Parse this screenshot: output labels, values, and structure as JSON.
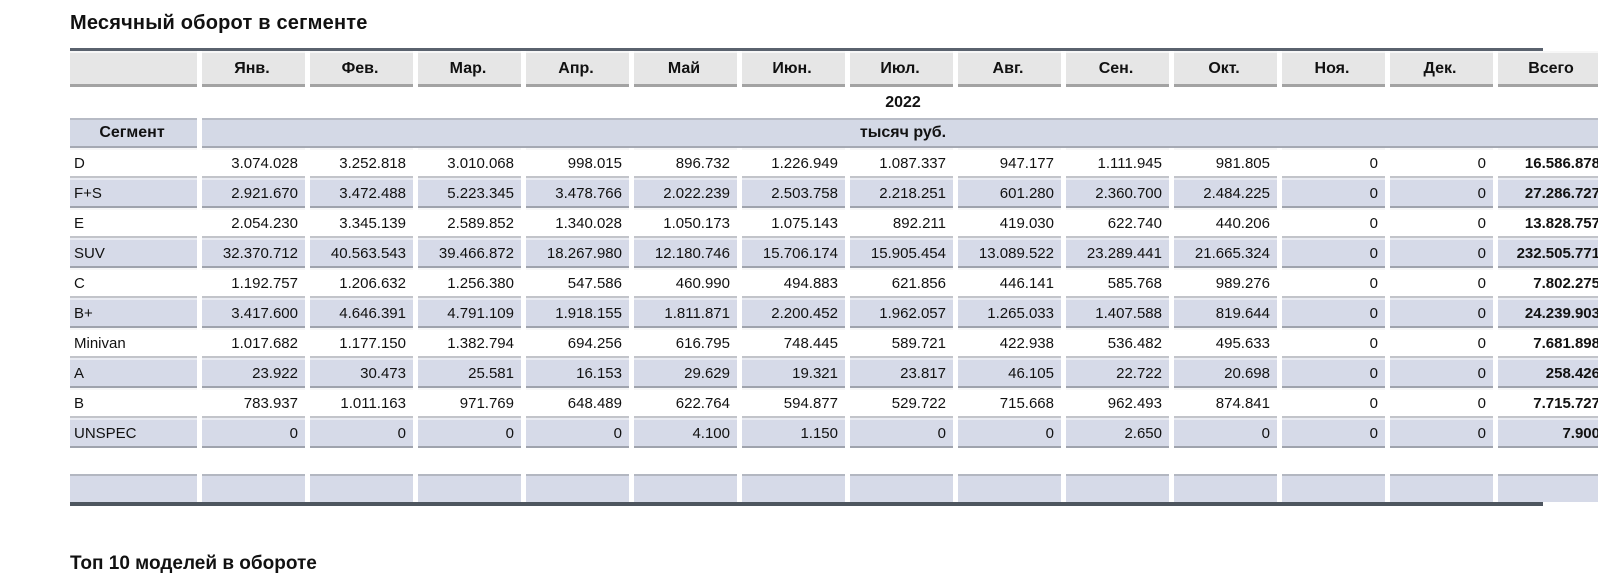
{
  "title": "Месячный оборот в сегменте",
  "year": "2022",
  "table": {
    "segment_header": "Сегмент",
    "units_header": "тысяч руб.",
    "months": [
      "Янв.",
      "Фев.",
      "Мар.",
      "Апр.",
      "Май",
      "Июн.",
      "Июл.",
      "Авг.",
      "Сен.",
      "Окт.",
      "Ноя.",
      "Дек."
    ],
    "total_header": "Всего",
    "rows": [
      {
        "segment": "D",
        "values": [
          "3.074.028",
          "3.252.818",
          "3.010.068",
          "998.015",
          "896.732",
          "1.226.949",
          "1.087.337",
          "947.177",
          "1.111.945",
          "981.805",
          "0",
          "0"
        ],
        "total": "16.586.878"
      },
      {
        "segment": "F+S",
        "values": [
          "2.921.670",
          "3.472.488",
          "5.223.345",
          "3.478.766",
          "2.022.239",
          "2.503.758",
          "2.218.251",
          "601.280",
          "2.360.700",
          "2.484.225",
          "0",
          "0"
        ],
        "total": "27.286.727"
      },
      {
        "segment": "E",
        "values": [
          "2.054.230",
          "3.345.139",
          "2.589.852",
          "1.340.028",
          "1.050.173",
          "1.075.143",
          "892.211",
          "419.030",
          "622.740",
          "440.206",
          "0",
          "0"
        ],
        "total": "13.828.757"
      },
      {
        "segment": "SUV",
        "values": [
          "32.370.712",
          "40.563.543",
          "39.466.872",
          "18.267.980",
          "12.180.746",
          "15.706.174",
          "15.905.454",
          "13.089.522",
          "23.289.441",
          "21.665.324",
          "0",
          "0"
        ],
        "total": "232.505.771"
      },
      {
        "segment": "C",
        "values": [
          "1.192.757",
          "1.206.632",
          "1.256.380",
          "547.586",
          "460.990",
          "494.883",
          "621.856",
          "446.141",
          "585.768",
          "989.276",
          "0",
          "0"
        ],
        "total": "7.802.275"
      },
      {
        "segment": "B+",
        "values": [
          "3.417.600",
          "4.646.391",
          "4.791.109",
          "1.918.155",
          "1.811.871",
          "2.200.452",
          "1.962.057",
          "1.265.033",
          "1.407.588",
          "819.644",
          "0",
          "0"
        ],
        "total": "24.239.903"
      },
      {
        "segment": "Minivan",
        "values": [
          "1.017.682",
          "1.177.150",
          "1.382.794",
          "694.256",
          "616.795",
          "748.445",
          "589.721",
          "422.938",
          "536.482",
          "495.633",
          "0",
          "0"
        ],
        "total": "7.681.898"
      },
      {
        "segment": "A",
        "values": [
          "23.922",
          "30.473",
          "25.581",
          "16.153",
          "29.629",
          "19.321",
          "23.817",
          "46.105",
          "22.722",
          "20.698",
          "0",
          "0"
        ],
        "total": "258.426"
      },
      {
        "segment": "B",
        "values": [
          "783.937",
          "1.011.163",
          "971.769",
          "648.489",
          "622.764",
          "594.877",
          "529.722",
          "715.668",
          "962.493",
          "874.841",
          "0",
          "0"
        ],
        "total": "7.715.727"
      },
      {
        "segment": "UNSPEC",
        "values": [
          "0",
          "0",
          "0",
          "0",
          "4.100",
          "1.150",
          "0",
          "0",
          "2.650",
          "0",
          "0",
          "0"
        ],
        "total": "7.900"
      }
    ]
  },
  "footer": {
    "partial_next_title": "Топ 10 моделей в обороте"
  },
  "colors": {
    "shaded_row": "#d6dae8",
    "units_band": "#d4d9e6",
    "header_cell": "#e6e6e6",
    "table_border_top": "#5a626e",
    "table_border_bottom": "#4e565f"
  }
}
